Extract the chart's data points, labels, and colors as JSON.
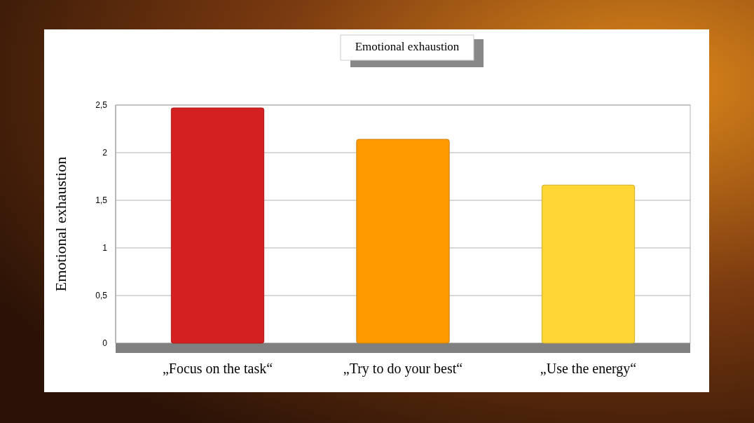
{
  "chart_data": {
    "type": "bar",
    "title": "Emotional exhaustion",
    "ylabel": "Emotional exhaustion",
    "categories": [
      "„Focus on the task“",
      "„Try to do your best“",
      "„Use the energy“"
    ],
    "values": [
      2.47,
      2.14,
      1.66
    ],
    "colors": [
      "#d42020",
      "#ff9a00",
      "#ffd633"
    ],
    "ylim": [
      0,
      2.5
    ],
    "yticks": [
      0,
      {
        "value": 0.5,
        "label": "0,5"
      },
      1,
      {
        "value": 1.5,
        "label": "1,5"
      },
      2,
      {
        "value": 2.5,
        "label": "2,5"
      }
    ],
    "grid": "y"
  }
}
